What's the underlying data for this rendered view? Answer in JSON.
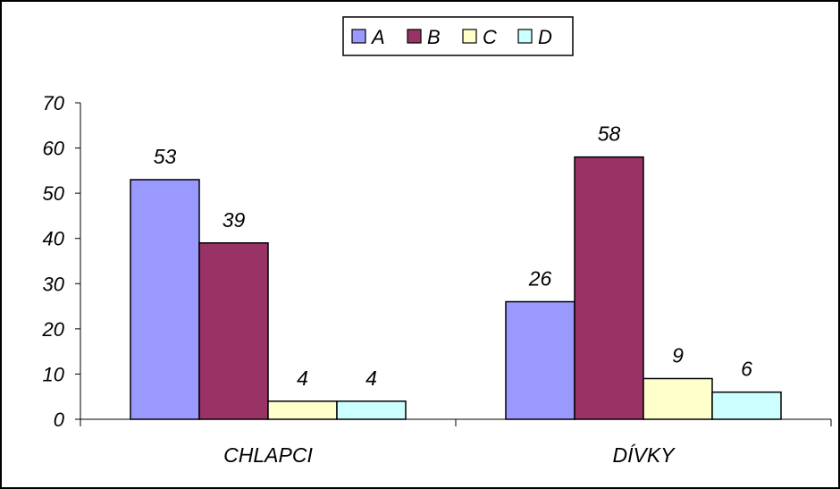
{
  "chart_data": {
    "type": "bar",
    "categories": [
      "CHLAPCI",
      "DÍVKY"
    ],
    "series": [
      {
        "name": "A",
        "values": [
          53,
          26
        ],
        "color": "#9999ff"
      },
      {
        "name": "B",
        "values": [
          39,
          58
        ],
        "color": "#993366"
      },
      {
        "name": "C",
        "values": [
          4,
          9
        ],
        "color": "#ffffcc"
      },
      {
        "name": "D",
        "values": [
          4,
          6
        ],
        "color": "#ccffff"
      }
    ],
    "ylim": [
      0,
      70
    ],
    "yticks": [
      0,
      10,
      20,
      30,
      40,
      50,
      60,
      70
    ],
    "grid": false,
    "legend_position": "top-center",
    "data_labels": true
  }
}
